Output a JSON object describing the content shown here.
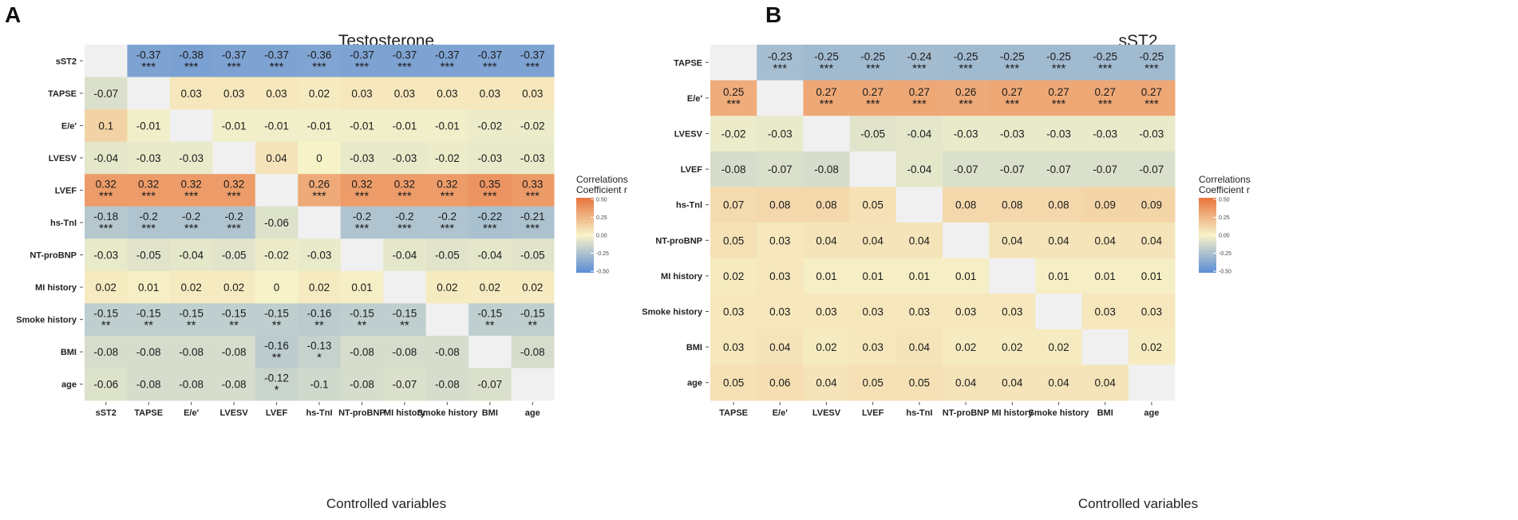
{
  "chart_data": [
    {
      "type": "heatmap",
      "panel": "A",
      "title": "Testosterone",
      "xlabel": "Controlled variables",
      "rows": [
        "sST2",
        "TAPSE",
        "E/e'",
        "LVESV",
        "LVEF",
        "hs-TnI",
        "NT-proBNP",
        "MI history",
        "Smoke history",
        "BMI",
        "age"
      ],
      "columns": [
        "sST2",
        "TAPSE",
        "E/e'",
        "LVESV",
        "LVEF",
        "hs-TnI",
        "NT-proBNP",
        "MI history",
        "Smoke history",
        "BMI",
        "age"
      ],
      "row_label_display": [
        "sST2",
        "TAPSE",
        "E/e'",
        "LVESV",
        "LVEF",
        "hs-TnI",
        "NT-proBNP",
        "MI history",
        "Smoke history",
        "BMI",
        "age"
      ],
      "values": [
        [
          null,
          -0.37,
          -0.38,
          -0.37,
          -0.37,
          -0.36,
          -0.37,
          -0.37,
          -0.37,
          -0.37,
          -0.37
        ],
        [
          -0.07,
          null,
          0.03,
          0.03,
          0.03,
          0.02,
          0.03,
          0.03,
          0.03,
          0.03,
          0.03
        ],
        [
          0.1,
          -0.01,
          null,
          -0.01,
          -0.01,
          -0.01,
          -0.01,
          -0.01,
          -0.01,
          -0.02,
          -0.02
        ],
        [
          -0.04,
          -0.03,
          -0.03,
          null,
          0.04,
          0,
          -0.03,
          -0.03,
          -0.02,
          -0.03,
          -0.03
        ],
        [
          0.32,
          0.32,
          0.32,
          0.32,
          null,
          0.26,
          0.32,
          0.32,
          0.32,
          0.35,
          0.33
        ],
        [
          -0.18,
          -0.2,
          -0.2,
          -0.2,
          -0.06,
          null,
          -0.2,
          -0.2,
          -0.2,
          -0.22,
          -0.21
        ],
        [
          -0.03,
          -0.05,
          -0.04,
          -0.05,
          -0.02,
          -0.03,
          null,
          -0.04,
          -0.05,
          -0.04,
          -0.05
        ],
        [
          0.02,
          0.01,
          0.02,
          0.02,
          0,
          0.02,
          0.01,
          null,
          0.02,
          0.02,
          0.02
        ],
        [
          -0.15,
          -0.15,
          -0.15,
          -0.15,
          -0.15,
          -0.16,
          -0.15,
          -0.15,
          null,
          -0.15,
          -0.15
        ],
        [
          -0.08,
          -0.08,
          -0.08,
          -0.08,
          -0.16,
          -0.13,
          -0.08,
          -0.08,
          -0.08,
          null,
          -0.08
        ],
        [
          -0.06,
          -0.08,
          -0.08,
          -0.08,
          -0.12,
          -0.1,
          -0.08,
          -0.07,
          -0.08,
          -0.07,
          null
        ]
      ],
      "stars": [
        [
          "",
          "***",
          "***",
          "***",
          "***",
          "***",
          "***",
          "***",
          "***",
          "***",
          "***"
        ],
        [
          "",
          "",
          "",
          "",
          "",
          "",
          "",
          "",
          "",
          "",
          ""
        ],
        [
          "",
          "",
          "",
          "",
          "",
          "",
          "",
          "",
          "",
          "",
          ""
        ],
        [
          "",
          "",
          "",
          "",
          "",
          "",
          "",
          "",
          "",
          "",
          ""
        ],
        [
          "***",
          "***",
          "***",
          "***",
          "",
          "***",
          "***",
          "***",
          "***",
          "***",
          "***"
        ],
        [
          "***",
          "***",
          "***",
          "***",
          "",
          "",
          "***",
          "***",
          "***",
          "***",
          "***"
        ],
        [
          "",
          "",
          "",
          "",
          "",
          "",
          "",
          "",
          "",
          "",
          ""
        ],
        [
          "",
          "",
          "",
          "",
          "",
          "",
          "",
          "",
          "",
          "",
          ""
        ],
        [
          "**",
          "**",
          "**",
          "**",
          "**",
          "**",
          "**",
          "**",
          "",
          "**",
          "**"
        ],
        [
          "",
          "",
          "",
          "",
          "**",
          "*",
          "",
          "",
          "",
          "",
          ""
        ],
        [
          "",
          "",
          "",
          "",
          "*",
          "",
          "",
          "",
          "",
          "",
          ""
        ]
      ],
      "legend": {
        "title_line1": "Correlations",
        "title_line2": "Coefficient r",
        "ticks": [
          "0.50",
          "0.25",
          "0.00",
          "-0.25",
          "-0.50"
        ]
      }
    },
    {
      "type": "heatmap",
      "panel": "B",
      "title": "sST2",
      "xlabel": "Controlled variables",
      "rows": [
        "TAPSE",
        "E/e'",
        "LVESV",
        "LVEF",
        "hs-TnI",
        "NT-proBNP",
        "MI history",
        "Smoke history",
        "BMI",
        "age"
      ],
      "columns": [
        "TAPSE",
        "E/e'",
        "LVESV",
        "LVEF",
        "hs-TnI",
        "NT-proBNP",
        "MI history",
        "Smoke history",
        "BMI",
        "age"
      ],
      "row_label_display": [
        "TAPSE",
        "E/e'",
        "LVESV",
        "LVEF",
        "hs-Tnl",
        "NT-proBNP",
        "MI history",
        "Smoke history",
        "BMI",
        "age"
      ],
      "values": [
        [
          null,
          -0.23,
          -0.25,
          -0.25,
          -0.24,
          -0.25,
          -0.25,
          -0.25,
          -0.25,
          -0.25
        ],
        [
          0.25,
          null,
          0.27,
          0.27,
          0.27,
          0.26,
          0.27,
          0.27,
          0.27,
          0.27
        ],
        [
          -0.02,
          -0.03,
          null,
          -0.05,
          -0.04,
          -0.03,
          -0.03,
          -0.03,
          -0.03,
          -0.03
        ],
        [
          -0.08,
          -0.07,
          -0.08,
          null,
          -0.04,
          -0.07,
          -0.07,
          -0.07,
          -0.07,
          -0.07
        ],
        [
          0.07,
          0.08,
          0.08,
          0.05,
          null,
          0.08,
          0.08,
          0.08,
          0.09,
          0.09
        ],
        [
          0.05,
          0.03,
          0.04,
          0.04,
          0.04,
          null,
          0.04,
          0.04,
          0.04,
          0.04
        ],
        [
          0.02,
          0.03,
          0.01,
          0.01,
          0.01,
          0.01,
          null,
          0.01,
          0.01,
          0.01
        ],
        [
          0.03,
          0.03,
          0.03,
          0.03,
          0.03,
          0.03,
          0.03,
          null,
          0.03,
          0.03
        ],
        [
          0.03,
          0.04,
          0.02,
          0.03,
          0.04,
          0.02,
          0.02,
          0.02,
          null,
          0.02
        ],
        [
          0.05,
          0.06,
          0.04,
          0.05,
          0.05,
          0.04,
          0.04,
          0.04,
          0.04,
          null
        ]
      ],
      "stars": [
        [
          "",
          "***",
          "***",
          "***",
          "***",
          "***",
          "***",
          "***",
          "***",
          "***"
        ],
        [
          "***",
          "",
          "***",
          "***",
          "***",
          "***",
          "***",
          "***",
          "***",
          "***"
        ],
        [
          "",
          "",
          "",
          "",
          "",
          "",
          "",
          "",
          "",
          ""
        ],
        [
          "",
          "",
          "",
          "",
          "",
          "",
          "",
          "",
          "",
          ""
        ],
        [
          "",
          "",
          "",
          "",
          "",
          "",
          "",
          "",
          "",
          ""
        ],
        [
          "",
          "",
          "",
          "",
          "",
          "",
          "",
          "",
          "",
          ""
        ],
        [
          "",
          "",
          "",
          "",
          "",
          "",
          "",
          "",
          "",
          ""
        ],
        [
          "",
          "",
          "",
          "",
          "",
          "",
          "",
          "",
          "",
          ""
        ],
        [
          "",
          "",
          "",
          "",
          "",
          "",
          "",
          "",
          "",
          ""
        ],
        [
          "",
          "",
          "",
          "",
          "",
          "",
          "",
          "",
          "",
          ""
        ]
      ],
      "legend": {
        "title_line1": "Correlations",
        "title_line2": "Coefficient r",
        "ticks": [
          "0.50",
          "0.25",
          "0.00",
          "-0.25",
          "-0.50"
        ]
      }
    }
  ],
  "colors": {
    "negative": "#5b8cd6",
    "neutral": "#f7f3c9",
    "positive": "#e8743d",
    "diagonal": "#f0f0f0"
  }
}
